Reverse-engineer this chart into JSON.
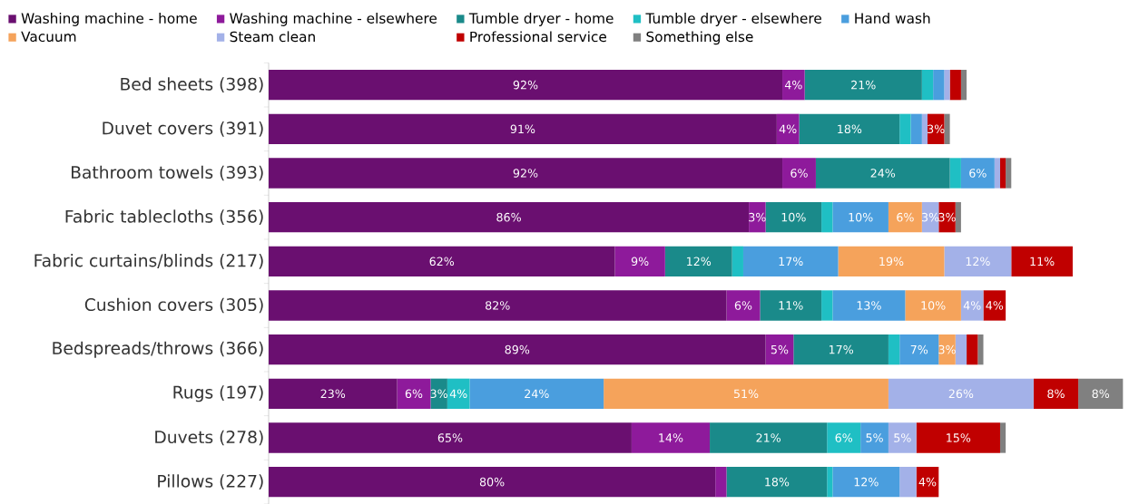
{
  "chart_data": {
    "type": "bar",
    "orientation": "horizontal",
    "stacked": true,
    "legend": "top",
    "categories": [
      "Bed sheets (398)",
      "Duvet covers (391)",
      "Bathroom towels (393)",
      "Fabric tablecloths (356)",
      "Fabric curtains/blinds (217)",
      "Cushion covers (305)",
      "Bedspreads/throws (366)",
      "Rugs (197)",
      "Duvets (278)",
      "Pillows (227)"
    ],
    "series": [
      {
        "name": "Washing machine - home",
        "color": "#6a0f70",
        "values": [
          92,
          91,
          92,
          86,
          62,
          82,
          89,
          23,
          65,
          80
        ],
        "value_labels": [
          "92%",
          "91%",
          "92%",
          "86%",
          "62%",
          "82%",
          "89%",
          "23%",
          "65%",
          "80%"
        ]
      },
      {
        "name": "Washing machine - elsewhere",
        "color": "#8e1a9b",
        "values": [
          4,
          4,
          6,
          3,
          9,
          6,
          5,
          6,
          14,
          2
        ],
        "value_labels": [
          "4%",
          "4%",
          "6%",
          "3%",
          "9%",
          "6%",
          "5%",
          "6%",
          "14%",
          null
        ]
      },
      {
        "name": "Tumble dryer - home",
        "color": "#1a8a8a",
        "values": [
          21,
          18,
          24,
          10,
          12,
          11,
          17,
          3,
          21,
          18
        ],
        "value_labels": [
          "21%",
          "18%",
          "24%",
          "10%",
          "12%",
          "11%",
          "17%",
          "3%",
          "21%",
          "18%"
        ]
      },
      {
        "name": "Tumble dryer - elsewhere",
        "color": "#1fbfc4",
        "values": [
          2,
          2,
          2,
          2,
          2,
          2,
          2,
          4,
          6,
          1
        ],
        "value_labels": [
          null,
          null,
          null,
          null,
          null,
          null,
          null,
          "4%",
          "6%",
          null
        ]
      },
      {
        "name": "Hand wash",
        "color": "#4a9ede",
        "values": [
          2,
          2,
          6,
          10,
          17,
          13,
          7,
          24,
          5,
          12
        ],
        "value_labels": [
          null,
          null,
          "6%",
          "10%",
          "17%",
          "13%",
          "7%",
          "24%",
          "5%",
          "12%"
        ]
      },
      {
        "name": "Vacuum",
        "color": "#f5a35b",
        "values": [
          0,
          0,
          0,
          6,
          19,
          10,
          3,
          51,
          0,
          0
        ],
        "value_labels": [
          null,
          null,
          null,
          "6%",
          "19%",
          "10%",
          "3%",
          "51%",
          null,
          null
        ]
      },
      {
        "name": "Steam clean",
        "color": "#a3b1e8",
        "values": [
          1,
          1,
          1,
          3,
          12,
          4,
          2,
          26,
          5,
          3
        ],
        "value_labels": [
          null,
          null,
          null,
          "3%",
          "12%",
          "4%",
          null,
          "26%",
          "5%",
          null
        ]
      },
      {
        "name": "Professional service",
        "color": "#c00000",
        "values": [
          2,
          3,
          1,
          3,
          11,
          4,
          2,
          8,
          15,
          4
        ],
        "value_labels": [
          null,
          "3%",
          null,
          "3%",
          "11%",
          "4%",
          null,
          "8%",
          "15%",
          "4%"
        ]
      },
      {
        "name": "Something else",
        "color": "#808080",
        "values": [
          1,
          1,
          1,
          1,
          0,
          0,
          1,
          8,
          1,
          0
        ],
        "value_labels": [
          null,
          null,
          null,
          null,
          null,
          null,
          null,
          "8%",
          null,
          null
        ]
      }
    ]
  }
}
